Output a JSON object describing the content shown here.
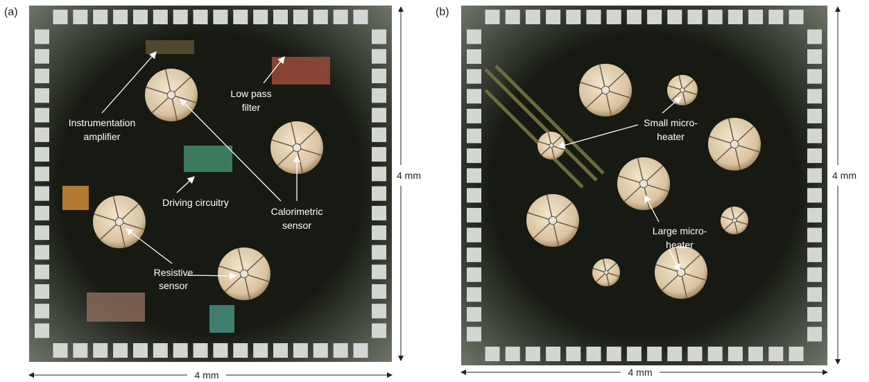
{
  "panels": [
    {
      "label": "(a)",
      "width_label": "4 mm",
      "height_label": "4 mm",
      "annotations": [
        {
          "lines": [
            "Instrumentation",
            "amplifier"
          ]
        },
        {
          "lines": [
            "Low pass",
            "filter"
          ]
        },
        {
          "lines": [
            "Driving circuitry"
          ]
        },
        {
          "lines": [
            "Calorimetric",
            "sensor"
          ]
        },
        {
          "lines": [
            "Resistive",
            "sensor"
          ]
        }
      ]
    },
    {
      "label": "(b)",
      "width_label": "4 mm",
      "height_label": "4 mm",
      "annotations": [
        {
          "lines": [
            "Small micro-",
            "heater"
          ]
        },
        {
          "lines": [
            "Large micro-",
            "heater"
          ]
        }
      ]
    }
  ]
}
